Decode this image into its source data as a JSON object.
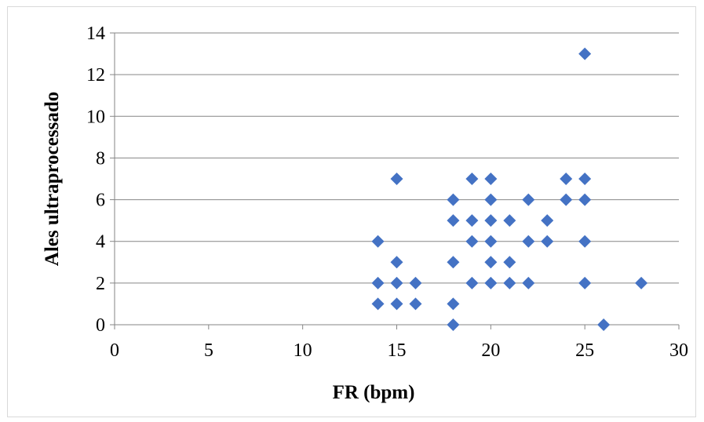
{
  "chart_data": {
    "type": "scatter",
    "xlabel": "FR (bpm)",
    "ylabel": "Ales ultraprocessado",
    "xlim": [
      0,
      30
    ],
    "ylim": [
      0,
      14
    ],
    "x_ticks": [
      "0",
      "5",
      "10",
      "15",
      "20",
      "25",
      "30"
    ],
    "y_ticks": [
      "0",
      "2",
      "4",
      "6",
      "8",
      "10",
      "12",
      "14"
    ],
    "grid": "horizontal",
    "legend": "none",
    "series": [
      {
        "color": "#4472c4",
        "marker": "diamond",
        "points": [
          {
            "x": 14,
            "y": 4
          },
          {
            "x": 14,
            "y": 2
          },
          {
            "x": 14,
            "y": 1
          },
          {
            "x": 15,
            "y": 7
          },
          {
            "x": 15,
            "y": 3
          },
          {
            "x": 15,
            "y": 2
          },
          {
            "x": 15,
            "y": 1
          },
          {
            "x": 16,
            "y": 2
          },
          {
            "x": 16,
            "y": 1
          },
          {
            "x": 18,
            "y": 6
          },
          {
            "x": 18,
            "y": 5
          },
          {
            "x": 18,
            "y": 3
          },
          {
            "x": 18,
            "y": 1
          },
          {
            "x": 18,
            "y": 0
          },
          {
            "x": 19,
            "y": 7
          },
          {
            "x": 19,
            "y": 5
          },
          {
            "x": 19,
            "y": 4
          },
          {
            "x": 19,
            "y": 2
          },
          {
            "x": 20,
            "y": 7
          },
          {
            "x": 20,
            "y": 6
          },
          {
            "x": 20,
            "y": 5
          },
          {
            "x": 20,
            "y": 4
          },
          {
            "x": 20,
            "y": 3
          },
          {
            "x": 20,
            "y": 2
          },
          {
            "x": 21,
            "y": 5
          },
          {
            "x": 21,
            "y": 3
          },
          {
            "x": 21,
            "y": 2
          },
          {
            "x": 22,
            "y": 6
          },
          {
            "x": 22,
            "y": 4
          },
          {
            "x": 22,
            "y": 2
          },
          {
            "x": 23,
            "y": 5
          },
          {
            "x": 23,
            "y": 4
          },
          {
            "x": 24,
            "y": 7
          },
          {
            "x": 24,
            "y": 6
          },
          {
            "x": 25,
            "y": 13
          },
          {
            "x": 25,
            "y": 7
          },
          {
            "x": 25,
            "y": 6
          },
          {
            "x": 25,
            "y": 4
          },
          {
            "x": 25,
            "y": 2
          },
          {
            "x": 26,
            "y": 0
          },
          {
            "x": 28,
            "y": 2
          }
        ]
      }
    ]
  },
  "colors": {
    "gridline": "#868686",
    "axis": "#868686",
    "border": "#d9d9d9"
  }
}
